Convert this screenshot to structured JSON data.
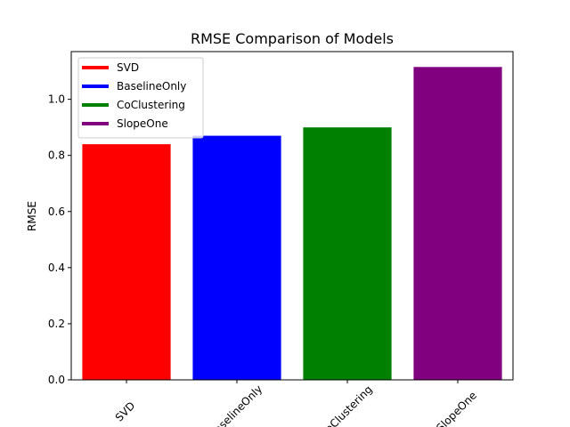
{
  "chart_data": {
    "type": "bar",
    "title": "RMSE Comparison of Models",
    "xlabel": "",
    "ylabel": "RMSE",
    "categories": [
      "SVD",
      "BaselineOnly",
      "CoClustering",
      "SlopeOne"
    ],
    "values": [
      0.84,
      0.87,
      0.9,
      1.115
    ],
    "colors": [
      "#ff0000",
      "#0000ff",
      "#008000",
      "#800080"
    ],
    "ylim": [
      0,
      1.17
    ],
    "yticks": [
      "0.0",
      "0.2",
      "0.4",
      "0.6",
      "0.8",
      "1.0"
    ],
    "x_tick_rotation": "45",
    "grid": false,
    "legend": {
      "position": "upper-left",
      "entries": [
        "SVD",
        "BaselineOnly",
        "CoClustering",
        "SlopeOne"
      ]
    }
  }
}
